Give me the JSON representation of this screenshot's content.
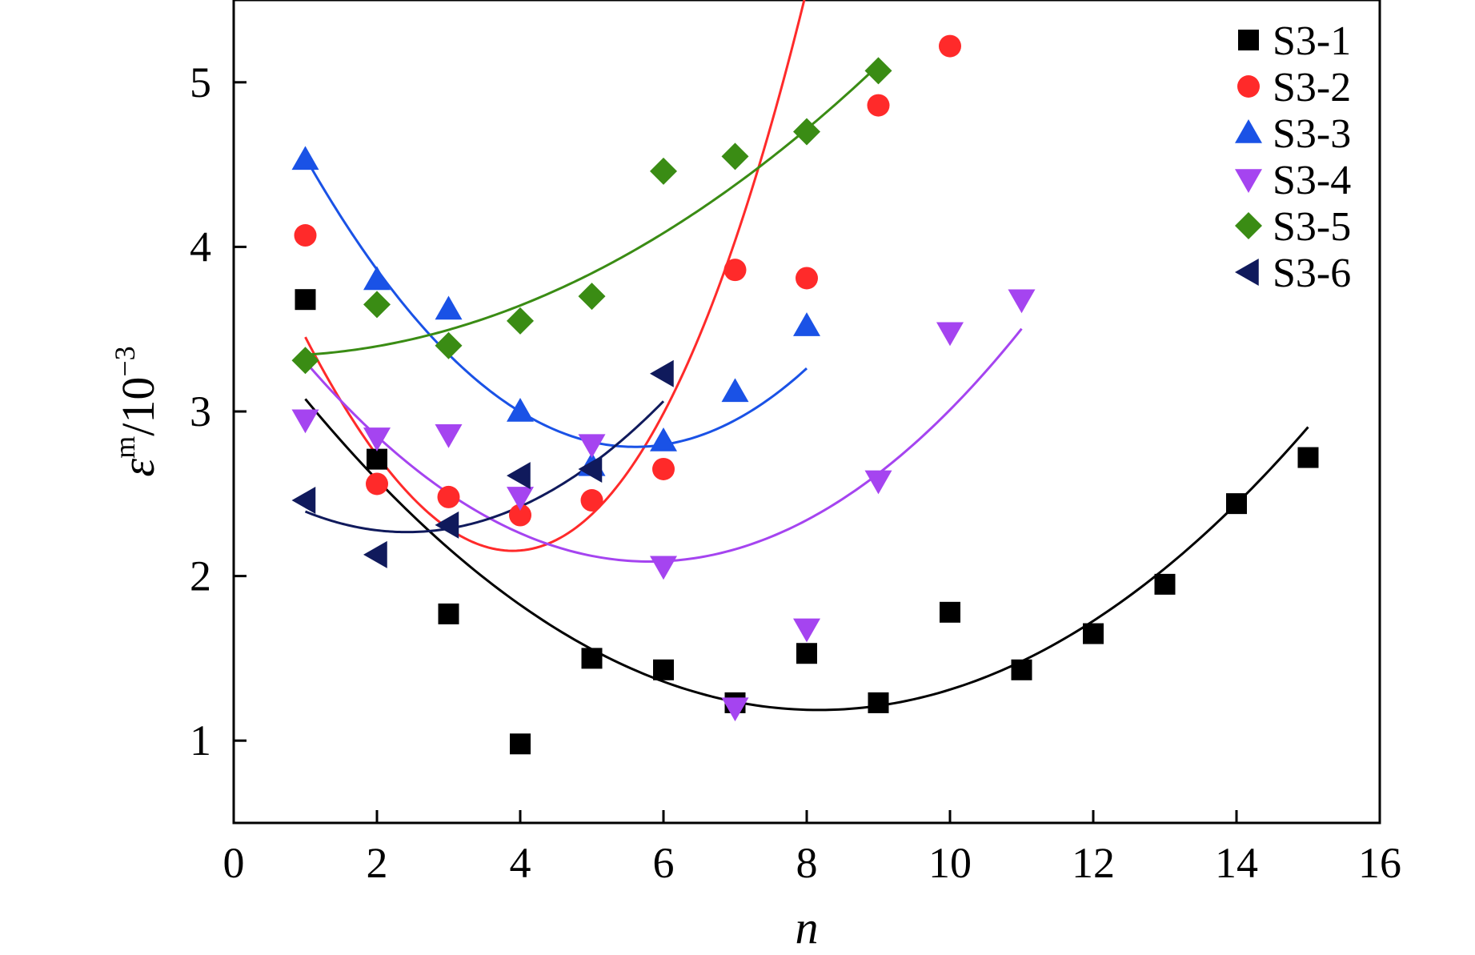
{
  "chart_data": {
    "type": "scatter",
    "title": "",
    "xlabel": "n",
    "ylabel": {
      "base": "ε",
      "superscript": "m",
      "divider": "/10",
      "exponent": "−3"
    },
    "xlim": [
      0,
      16
    ],
    "ylim": [
      0.5,
      5.5
    ],
    "xticks": [
      "0",
      "2",
      "4",
      "6",
      "8",
      "10",
      "12",
      "14",
      "16"
    ],
    "yticks": [
      "1",
      "2",
      "3",
      "4",
      "5"
    ],
    "grid": false,
    "legend_position": "top-right",
    "series": [
      {
        "name": "S3-1",
        "color": "#000000",
        "marker": "square",
        "x": [
          1,
          2,
          3,
          4,
          5,
          6,
          7,
          8,
          9,
          10,
          11,
          12,
          13,
          14,
          15
        ],
        "y": [
          3.68,
          2.71,
          1.77,
          0.98,
          1.5,
          1.43,
          1.23,
          1.53,
          1.23,
          1.78,
          1.43,
          1.65,
          1.95,
          2.44,
          2.72
        ],
        "fit": {
          "x_range": [
            1,
            15
          ],
          "coeffs": [
            3.64,
            -0.601,
            0.0368
          ]
        }
      },
      {
        "name": "S3-2",
        "color": "#ff2a2a",
        "marker": "circle",
        "x": [
          1,
          2,
          3,
          4,
          5,
          6,
          7,
          8,
          9,
          10
        ],
        "y": [
          4.07,
          2.56,
          2.48,
          2.37,
          2.46,
          2.65,
          3.86,
          3.81,
          4.86,
          5.22
        ],
        "fit": {
          "x_range": [
            1,
            9.9
          ],
          "coeffs": [
            4.4,
            -1.05,
            0.095,
            0.0068
          ]
        }
      },
      {
        "name": "S3-3",
        "color": "#1a52e6",
        "marker": "triangle-up",
        "x": [
          1,
          2,
          3,
          4,
          5,
          6,
          7,
          8
        ],
        "y": [
          4.53,
          3.8,
          3.62,
          3.0,
          2.67,
          2.82,
          3.12,
          3.52
        ],
        "fit": {
          "x_range": [
            1,
            8
          ],
          "coeffs": [
            5.39,
            -0.93,
            0.083
          ]
        }
      },
      {
        "name": "S3-4",
        "color": "#a544f0",
        "marker": "triangle-down",
        "x": [
          1,
          2,
          3,
          4,
          5,
          6,
          7,
          8,
          9,
          10,
          11
        ],
        "y": [
          2.95,
          2.84,
          2.86,
          2.48,
          2.8,
          2.06,
          1.2,
          1.68,
          2.58,
          3.48,
          3.68
        ],
        "fit": {
          "x_range": [
            1,
            11
          ],
          "coeffs": [
            3.86,
            -0.61,
            0.0525
          ]
        }
      },
      {
        "name": "S3-5",
        "color": "#3a8c14",
        "marker": "diamond",
        "x": [
          1,
          2,
          3,
          4,
          5,
          6,
          7,
          8,
          9
        ],
        "y": [
          3.31,
          3.65,
          3.4,
          3.55,
          3.7,
          4.46,
          4.55,
          4.7,
          5.07
        ],
        "fit": {
          "x_range": [
            1,
            9
          ],
          "coeffs": [
            3.34,
            -0.02,
            0.024
          ]
        }
      },
      {
        "name": "S3-6",
        "color": "#101a5c",
        "marker": "triangle-left",
        "x": [
          1,
          2,
          3,
          4,
          5,
          6
        ],
        "y": [
          2.46,
          2.13,
          2.31,
          2.61,
          2.65,
          3.23
        ],
        "fit": {
          "x_range": [
            1,
            6
          ],
          "coeffs": [
            2.63,
            -0.3,
            0.062
          ]
        }
      }
    ]
  }
}
